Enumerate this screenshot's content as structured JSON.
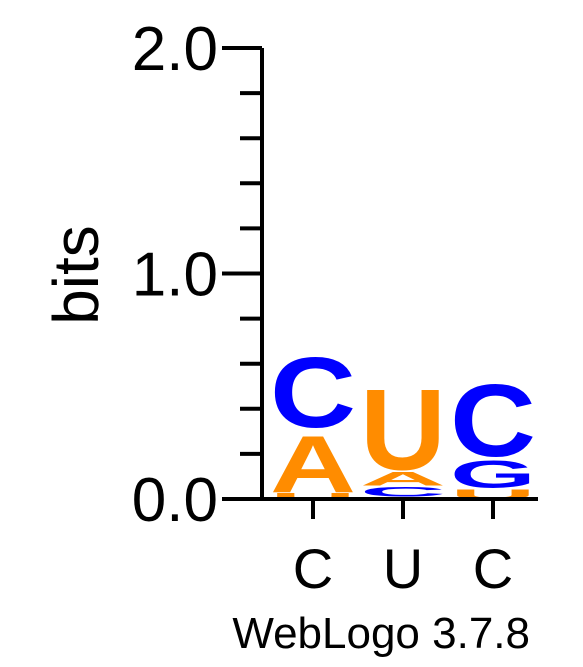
{
  "chart_data": {
    "type": "sequence-logo",
    "ylabel": "bits",
    "ylim": [
      0,
      2
    ],
    "y_ticks": [
      "0.0",
      "1.0",
      "2.0"
    ],
    "x_ticks": [
      "C",
      "U",
      "C"
    ],
    "footer": "WebLogo 3.7.8",
    "colors": {
      "C": "#0000ff",
      "G": "#0000ff",
      "A": "#ff8c00",
      "U": "#ff8c00"
    },
    "positions": [
      {
        "consensus": "C",
        "stack": [
          {
            "letter": "U",
            "bits": 0.03
          },
          {
            "letter": "A",
            "bits": 0.29
          },
          {
            "letter": "C",
            "bits": 0.36
          }
        ]
      },
      {
        "consensus": "U",
        "stack": [
          {
            "letter": "G",
            "bits": 0.01
          },
          {
            "letter": "C",
            "bits": 0.05
          },
          {
            "letter": "A",
            "bits": 0.07
          },
          {
            "letter": "U",
            "bits": 0.41
          }
        ]
      },
      {
        "consensus": "C",
        "stack": [
          {
            "letter": "U",
            "bits": 0.05
          },
          {
            "letter": "G",
            "bits": 0.14
          },
          {
            "letter": "C",
            "bits": 0.37
          }
        ]
      }
    ]
  }
}
